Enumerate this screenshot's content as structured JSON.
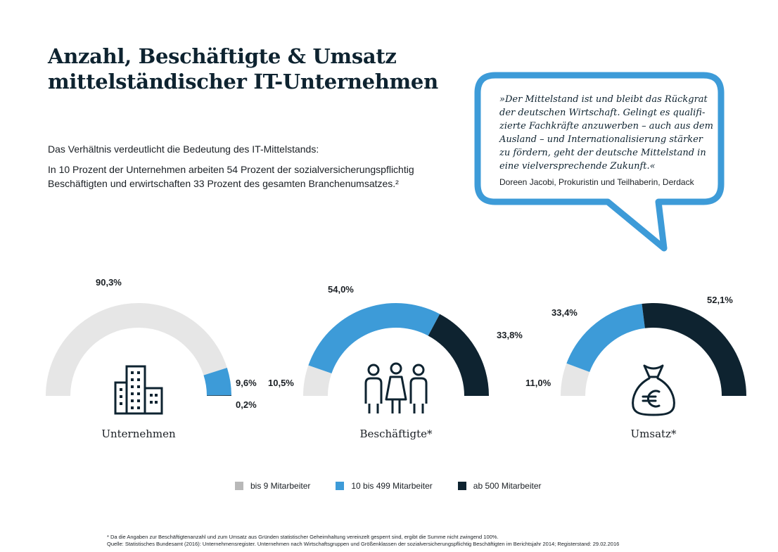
{
  "title": {
    "line1": "Anzahl, Beschäftigte & Umsatz",
    "line2": "mittelständischer IT-Unternehmen"
  },
  "intro": {
    "p1": "Das Verhältnis verdeutlicht die Bedeutung des IT-Mittelstands:",
    "p2": "In 10 Prozent der Unternehmen arbeiten 54 Prozent der sozialversicherungspflichtig Beschäftigten und erwirtschaften 33 Prozent des gesamten Branchenumsatzes.²"
  },
  "quote": {
    "lines": [
      "»Der Mittelstand ist und bleibt das Rückgrat",
      "der deutschen Wirtschaft. Gelingt es qualifi-",
      "zierte Fachkräfte anzuwerben – auch aus dem",
      "Ausland – und Internationalisierung stärker",
      "zu fördern, geht der deutsche Mittelstand in",
      "eine vielversprechende Zukunft.«"
    ],
    "author": "Doreen Jacobi, Prokuristin und Teilhaberin, Derdack",
    "color": "#3d9bd8"
  },
  "colors": {
    "small": "#e6e6e6",
    "medium": "#3d9bd8",
    "large": "#0e2330"
  },
  "legend": [
    {
      "label": "bis 9 Mitarbeiter",
      "color": "#b8b8b8"
    },
    {
      "label": "10 bis 499 Mitarbeiter",
      "color": "#3d9bd8"
    },
    {
      "label": "ab 500 Mitarbeiter",
      "color": "#0e2330"
    }
  ],
  "chart_data": [
    {
      "type": "pie",
      "title": "Unternehmen",
      "icon": "buildings-icon",
      "categories": [
        "bis 9 Mitarbeiter",
        "10 bis 499 Mitarbeiter",
        "ab 500 Mitarbeiter"
      ],
      "values": [
        90.3,
        9.6,
        0.2
      ],
      "labels": [
        "90,3%",
        "9,6%",
        "0,2%"
      ]
    },
    {
      "type": "pie",
      "title": "Beschäftigte*",
      "icon": "people-icon",
      "categories": [
        "bis 9 Mitarbeiter",
        "10 bis 499 Mitarbeiter",
        "ab 500 Mitarbeiter"
      ],
      "values": [
        10.5,
        54.0,
        33.8
      ],
      "labels": [
        "10,5%",
        "54,0%",
        "33,8%"
      ]
    },
    {
      "type": "pie",
      "title": "Umsatz*",
      "icon": "euro-money-bag-icon",
      "categories": [
        "bis 9 Mitarbeiter",
        "10 bis 499 Mitarbeiter",
        "ab 500 Mitarbeiter"
      ],
      "values": [
        11.0,
        33.4,
        52.1
      ],
      "labels": [
        "11,0%",
        "33,4%",
        "52,1%"
      ]
    }
  ],
  "footnote": {
    "line1": "* Da die Angaben zur Beschäftigtenanzahl und zum Umsatz aus Gründen statistischer Geheimhaltung vereinzelt gesperrt sind, ergibt die Summe nicht zwingend 100%.",
    "line2": "Quelle: Statistisches Bundesamt (2016): Unternehmensregister. Unternehmen nach Wirtschaftsgruppen und Größenklassen der sozialversicherungspflichtig Beschäftigten im Berichtsjahr 2014; Registerstand: 29.02.2016"
  }
}
